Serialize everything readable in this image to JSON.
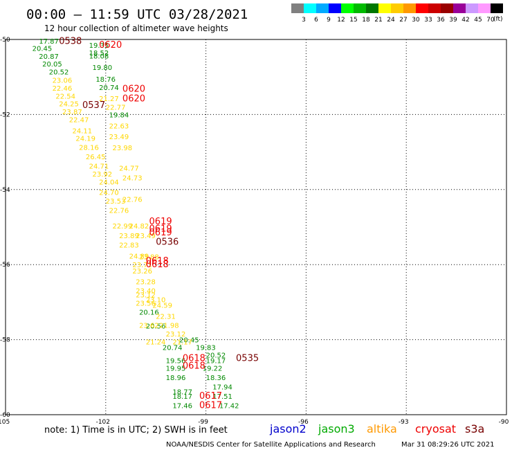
{
  "chart_data": {
    "type": "scatter",
    "title": "00:00 – 11:59 UTC 03/28/2021",
    "subtitle": "12 hour collection of altimeter wave heights",
    "x_axis": {
      "ticks": [
        -105,
        -102,
        -99,
        -96,
        -93,
        -90
      ],
      "tick_labels": [
        "-105",
        "-102",
        "-99",
        "-96",
        "-93",
        "-90"
      ],
      "range": [
        -105,
        -90
      ]
    },
    "y_axis": {
      "ticks": [
        -50,
        -52,
        -54,
        -56,
        -58,
        -60
      ],
      "tick_labels": [
        "-50",
        "-52",
        "-54",
        "-56",
        "-58",
        "-60"
      ],
      "range": [
        -60,
        -50
      ]
    },
    "grid": true,
    "colorbar": {
      "labels": [
        "3",
        "6",
        "9",
        "12",
        "15",
        "18",
        "21",
        "24",
        "27",
        "30",
        "33",
        "36",
        "39",
        "42",
        "45",
        "70"
      ],
      "unit": "(ft)",
      "colors": [
        "#808080",
        "#00ffff",
        "#00aaff",
        "#0000ff",
        "#00ff00",
        "#00bb00",
        "#007700",
        "#ffff00",
        "#ffcc00",
        "#ff9900",
        "#ff0000",
        "#cc0000",
        "#990000",
        "#990099",
        "#cc99ff",
        "#ff99ff",
        "#000000"
      ]
    },
    "series": [
      {
        "name": "jason3",
        "color": "#008800",
        "points": [
          {
            "x": -104.0,
            "y": -50.04,
            "label": "17.87"
          },
          {
            "x": -104.2,
            "y": -50.23,
            "label": "20.45"
          },
          {
            "x": -104.0,
            "y": -50.44,
            "label": "20.87"
          },
          {
            "x": -103.9,
            "y": -50.65,
            "label": "20.05"
          },
          {
            "x": -103.7,
            "y": -50.86,
            "label": "20.52"
          },
          {
            "x": -102.5,
            "y": -50.15,
            "label": "19.35"
          },
          {
            "x": -102.5,
            "y": -50.35,
            "label": "18.52"
          },
          {
            "x": -102.5,
            "y": -50.43,
            "label": "18.08"
          },
          {
            "x": -102.4,
            "y": -50.74,
            "label": "19.80"
          },
          {
            "x": -102.3,
            "y": -51.05,
            "label": "18.76"
          },
          {
            "x": -102.2,
            "y": -51.27,
            "label": "20.74"
          },
          {
            "x": -101.9,
            "y": -52.0,
            "label": "19.84"
          },
          {
            "x": -101.0,
            "y": -57.26,
            "label": "20.16"
          },
          {
            "x": -100.8,
            "y": -57.63,
            "label": "20.56"
          },
          {
            "x": -99.8,
            "y": -58.0,
            "label": "20.45"
          },
          {
            "x": -100.3,
            "y": -58.2,
            "label": "20.74"
          },
          {
            "x": -99.3,
            "y": -58.2,
            "label": "19.83"
          },
          {
            "x": -99.0,
            "y": -58.4,
            "label": "20.52"
          },
          {
            "x": -100.2,
            "y": -58.55,
            "label": "19.56"
          },
          {
            "x": -99.0,
            "y": -58.55,
            "label": "19.17"
          },
          {
            "x": -100.2,
            "y": -58.75,
            "label": "19.95"
          },
          {
            "x": -99.1,
            "y": -58.75,
            "label": "19.22"
          },
          {
            "x": -100.2,
            "y": -59.0,
            "label": "18.96"
          },
          {
            "x": -99.0,
            "y": -59.0,
            "label": "18.36"
          },
          {
            "x": -98.8,
            "y": -59.25,
            "label": "17.94"
          },
          {
            "x": -100.0,
            "y": -59.38,
            "label": "18.77"
          },
          {
            "x": -100.0,
            "y": -59.5,
            "label": "18.17"
          },
          {
            "x": -98.8,
            "y": -59.5,
            "label": "17.51"
          },
          {
            "x": -100.0,
            "y": -59.75,
            "label": "17.46"
          },
          {
            "x": -98.6,
            "y": -59.75,
            "label": "17.42"
          }
        ]
      },
      {
        "name": "altika",
        "color": "#ffd700",
        "points": [
          {
            "x": -103.6,
            "y": -51.08,
            "label": "23.06"
          },
          {
            "x": -103.6,
            "y": -51.29,
            "label": "22.46"
          },
          {
            "x": -103.5,
            "y": -51.5,
            "label": "22.54"
          },
          {
            "x": -103.4,
            "y": -51.71,
            "label": "24.25"
          },
          {
            "x": -103.3,
            "y": -51.92,
            "label": "23.87"
          },
          {
            "x": -103.1,
            "y": -52.13,
            "label": "22.47"
          },
          {
            "x": -103.0,
            "y": -52.43,
            "label": "24.11"
          },
          {
            "x": -102.9,
            "y": -52.63,
            "label": "24.19"
          },
          {
            "x": -102.8,
            "y": -52.87,
            "label": "28.16"
          },
          {
            "x": -102.6,
            "y": -53.12,
            "label": "26.45"
          },
          {
            "x": -102.5,
            "y": -53.37,
            "label": "24.71"
          },
          {
            "x": -102.4,
            "y": -53.58,
            "label": "23.92"
          },
          {
            "x": -102.2,
            "y": -53.79,
            "label": "24.04"
          },
          {
            "x": -102.2,
            "y": -54.07,
            "label": "24.70"
          },
          {
            "x": -102.2,
            "y": -51.57,
            "label": "21.27"
          },
          {
            "x": -102.0,
            "y": -51.8,
            "label": "22.77"
          },
          {
            "x": -101.9,
            "y": -52.3,
            "label": "22.63"
          },
          {
            "x": -101.9,
            "y": -52.58,
            "label": "23.49"
          },
          {
            "x": -101.8,
            "y": -52.88,
            "label": "23.98"
          },
          {
            "x": -101.6,
            "y": -53.42,
            "label": "24.77"
          },
          {
            "x": -101.5,
            "y": -53.68,
            "label": "24.73"
          },
          {
            "x": -102.0,
            "y": -54.3,
            "label": "23.53"
          },
          {
            "x": -101.5,
            "y": -54.25,
            "label": "22.76"
          },
          {
            "x": -101.9,
            "y": -54.55,
            "label": "22.76"
          },
          {
            "x": -101.8,
            "y": -54.96,
            "label": "22.99"
          },
          {
            "x": -101.3,
            "y": -54.96,
            "label": "24.82"
          },
          {
            "x": -101.6,
            "y": -55.22,
            "label": "23.89"
          },
          {
            "x": -101.1,
            "y": -55.22,
            "label": "23.49"
          },
          {
            "x": -101.6,
            "y": -55.47,
            "label": "22.83"
          },
          {
            "x": -101.3,
            "y": -55.77,
            "label": "24.89"
          },
          {
            "x": -101.0,
            "y": -55.78,
            "label": "23.88"
          },
          {
            "x": -101.2,
            "y": -56.0,
            "label": "23.71"
          },
          {
            "x": -101.2,
            "y": -56.16,
            "label": "23.26"
          },
          {
            "x": -101.1,
            "y": -56.45,
            "label": "23.28"
          },
          {
            "x": -101.1,
            "y": -56.69,
            "label": "23.40"
          },
          {
            "x": -101.1,
            "y": -56.8,
            "label": "23.12"
          },
          {
            "x": -100.8,
            "y": -56.93,
            "label": "23.10"
          },
          {
            "x": -101.1,
            "y": -57.02,
            "label": "23.56"
          },
          {
            "x": -100.6,
            "y": -57.08,
            "label": "24.59"
          },
          {
            "x": -100.5,
            "y": -57.37,
            "label": "22.31"
          },
          {
            "x": -101.0,
            "y": -57.61,
            "label": "23.62"
          },
          {
            "x": -100.4,
            "y": -57.61,
            "label": "21.98"
          },
          {
            "x": -100.2,
            "y": -57.84,
            "label": "23.12"
          },
          {
            "x": -100.8,
            "y": -58.05,
            "label": "21.24"
          },
          {
            "x": -100.0,
            "y": -58.05,
            "label": "21.17"
          }
        ]
      },
      {
        "name": "cryosat",
        "color": "#ee0000",
        "points": [
          {
            "x": -102.2,
            "y": -50.15,
            "label": "0620"
          },
          {
            "x": -101.5,
            "y": -51.32,
            "label": "0620"
          },
          {
            "x": -101.5,
            "y": -51.58,
            "label": "0620"
          },
          {
            "x": -100.7,
            "y": -54.85,
            "label": "0619"
          },
          {
            "x": -100.7,
            "y": -55.05,
            "label": "0619"
          },
          {
            "x": -100.7,
            "y": -55.15,
            "label": "0619"
          },
          {
            "x": -100.8,
            "y": -55.9,
            "label": "0618"
          },
          {
            "x": -100.8,
            "y": -56.0,
            "label": "0618"
          },
          {
            "x": -99.7,
            "y": -58.5,
            "label": "0618"
          },
          {
            "x": -99.7,
            "y": -58.7,
            "label": "0618"
          },
          {
            "x": -99.2,
            "y": -59.5,
            "label": "0617"
          },
          {
            "x": -99.2,
            "y": -59.75,
            "label": "0617"
          }
        ]
      },
      {
        "name": "s3a",
        "color": "#770000",
        "points": [
          {
            "x": -103.4,
            "y": -50.05,
            "label": "0538"
          },
          {
            "x": -102.7,
            "y": -51.75,
            "label": "0537"
          },
          {
            "x": -100.5,
            "y": -55.4,
            "label": "0536"
          },
          {
            "x": -98.1,
            "y": -58.5,
            "label": "0535"
          }
        ]
      }
    ],
    "legend": {
      "placement": "bottom",
      "entries": [
        {
          "name": "jason2",
          "color": "#0000cc"
        },
        {
          "name": "jason3",
          "color": "#00aa00"
        },
        {
          "name": "altika",
          "color": "#ff9900"
        },
        {
          "name": "cryosat",
          "color": "#ee0000"
        },
        {
          "name": "s3a",
          "color": "#770000"
        }
      ]
    },
    "note": "note: 1) Time is in UTC; 2) SWH is in feet",
    "footer": "NOAA/NESDIS Center for Satellite Applications and Research",
    "timestamp": "Mar 31 08:29:26 UTC 2021"
  }
}
